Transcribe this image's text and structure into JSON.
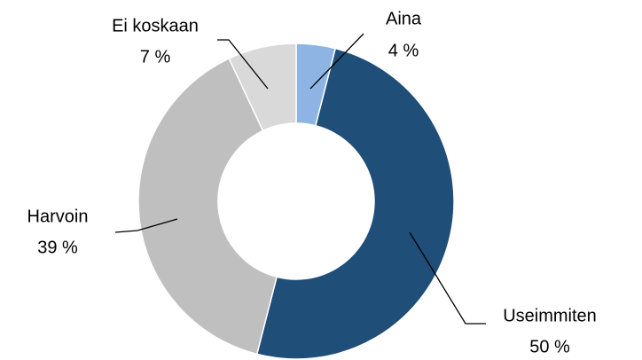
{
  "chart_data": {
    "type": "donut",
    "categories": [
      "Aina",
      "Useimmiten",
      "Harvoin",
      "Ei koskaan"
    ],
    "values": [
      4,
      50,
      39,
      7
    ],
    "value_labels": [
      "4 %",
      "50 %",
      "39 %",
      "7 %"
    ],
    "colors": [
      "#8eb4e3",
      "#1f4e79",
      "#bfbfbf",
      "#d9d9d9"
    ]
  }
}
